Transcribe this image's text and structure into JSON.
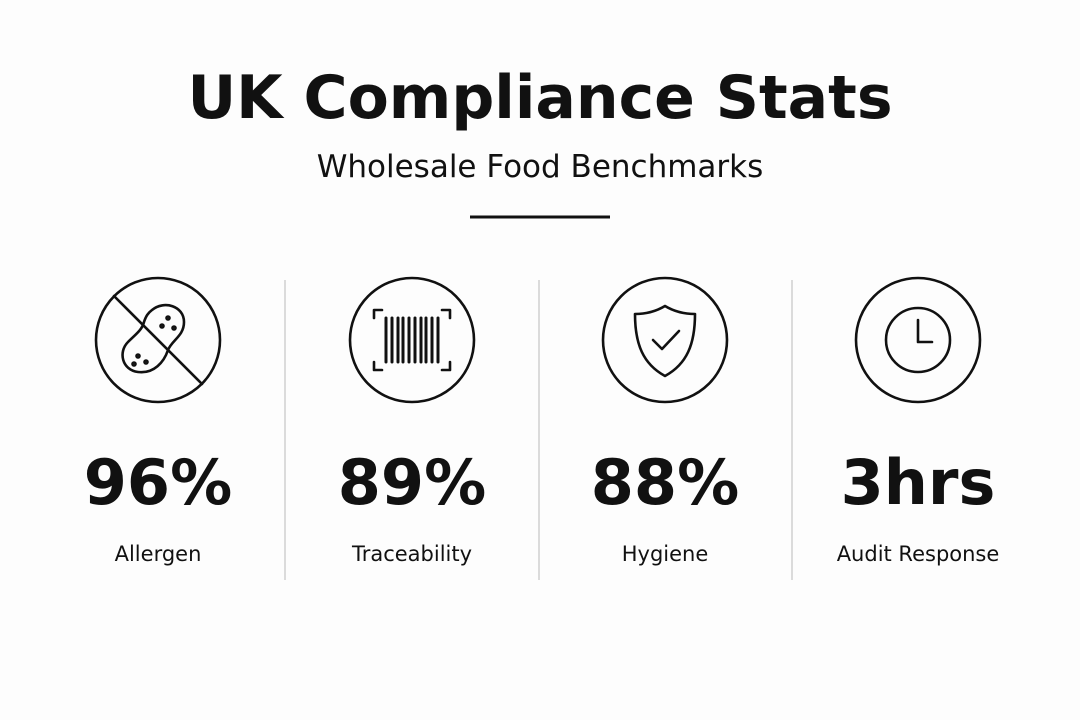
{
  "header": {
    "title": "UK Compliance Stats",
    "subtitle": "Wholesale Food Benchmarks"
  },
  "stats": [
    {
      "value": "96%",
      "label": "Allergen"
    },
    {
      "value": "89%",
      "label": "Traceability"
    },
    {
      "value": "88%",
      "label": "Hygiene"
    },
    {
      "value": "3hrs",
      "label": "Audit Response"
    }
  ]
}
